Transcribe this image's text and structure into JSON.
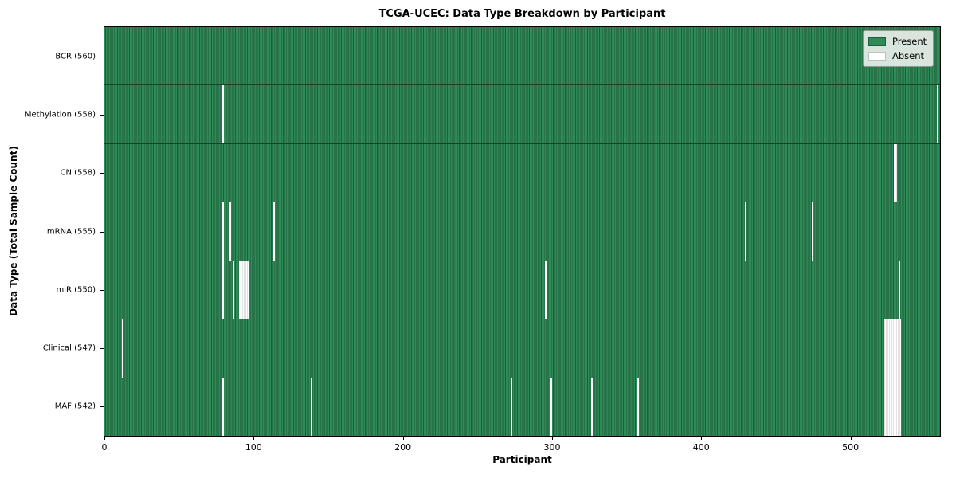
{
  "title": "TCGA-UCEC: Data Type Breakdown by Participant",
  "colors": {
    "present": "#2e8b57",
    "present_edge": "#1f5e3a",
    "absent": "#ffffff",
    "absent_edge": "#c4c4c4",
    "row_divider": "#16402a"
  },
  "legend": {
    "present_label": "Present",
    "absent_label": "Absent",
    "position": "upper right"
  },
  "chart_data": {
    "type": "heatmap",
    "title": "TCGA-UCEC: Data Type Breakdown by Participant",
    "xlabel": "Participant",
    "ylabel": "Data Type (Total Sample Count)",
    "xlim": [
      0,
      560
    ],
    "x_ticks": [
      0,
      100,
      200,
      300,
      400,
      500
    ],
    "n_participants": 560,
    "grid": false,
    "legend_entries": [
      "Present",
      "Absent"
    ],
    "legend_position": "upper right",
    "rows": [
      {
        "label": "BCR (560)",
        "data_type": "BCR",
        "present_count": 560,
        "absent_count": 0,
        "absent_participants": []
      },
      {
        "label": "Methylation (558)",
        "data_type": "Methylation",
        "present_count": 558,
        "absent_count": 2,
        "absent_participants": [
          79,
          558
        ]
      },
      {
        "label": "CN (558)",
        "data_type": "CN",
        "present_count": 558,
        "absent_count": 2,
        "absent_participants": [
          529,
          530
        ]
      },
      {
        "label": "mRNA (555)",
        "data_type": "mRNA",
        "present_count": 555,
        "absent_count": 5,
        "absent_participants": [
          79,
          84,
          113,
          429,
          474
        ]
      },
      {
        "label": "miR (550)",
        "data_type": "miR",
        "present_count": 550,
        "absent_count": 10,
        "absent_participants": [
          79,
          86,
          90,
          92,
          93,
          94,
          95,
          96,
          295,
          532
        ]
      },
      {
        "label": "Clinical (547)",
        "data_type": "Clinical",
        "present_count": 547,
        "absent_count": 13,
        "absent_participants": [
          12,
          522,
          523,
          524,
          525,
          526,
          527,
          528,
          529,
          530,
          531,
          532,
          533
        ]
      },
      {
        "label": "MAF (542)",
        "data_type": "MAF",
        "present_count": 542,
        "absent_count": 18,
        "absent_participants": [
          79,
          138,
          272,
          299,
          326,
          357,
          522,
          523,
          524,
          525,
          526,
          527,
          528,
          529,
          530,
          531,
          532,
          533
        ]
      }
    ]
  }
}
